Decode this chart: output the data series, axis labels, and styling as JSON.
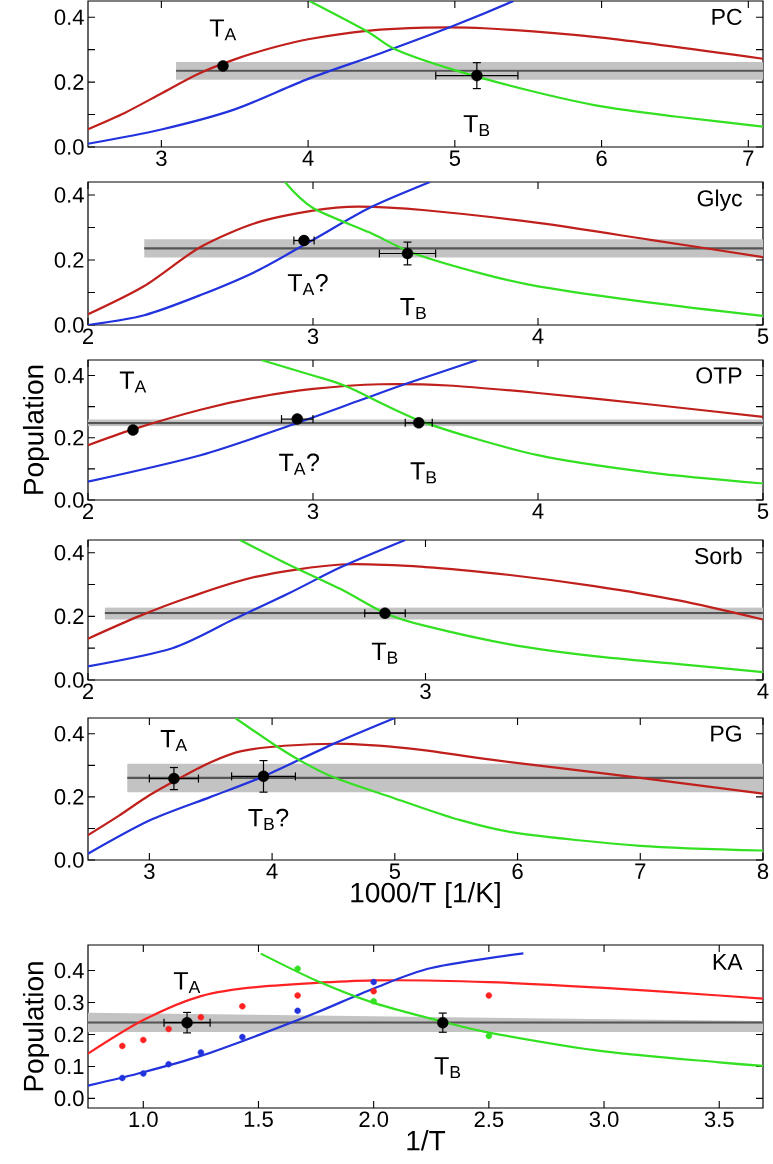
{
  "chart_data": [
    {
      "type": "line",
      "title": "PC",
      "xlim": [
        2.5,
        7.1
      ],
      "ylim": [
        0,
        0.45
      ],
      "xticks": [
        3,
        4,
        5,
        6,
        7
      ],
      "yticks": [
        {
          "value": 0,
          "label": "0.0"
        },
        {
          "value": 0.1,
          "label": null
        },
        0.2,
        {
          "value": 0.3,
          "label": null
        },
        0.4
      ],
      "series": [
        {
          "color": "#555555",
          "x": [
            3.1,
            7.1
          ],
          "values": [
            0.235,
            0.235
          ],
          "lower": [
            0.207,
            0.207
          ],
          "upper": [
            0.262,
            0.262
          ]
        },
        {
          "color": "#c0201c",
          "x": [
            2.5,
            2.75,
            3.0,
            3.25,
            3.5,
            3.75,
            4.0,
            4.4,
            4.8,
            5.2,
            6.0,
            7.1
          ],
          "values": [
            0.055,
            0.105,
            0.165,
            0.225,
            0.27,
            0.305,
            0.332,
            0.358,
            0.368,
            0.366,
            0.337,
            0.272
          ]
        },
        {
          "color": "#2233dd",
          "x": [
            2.5,
            3.0,
            3.5,
            4.0,
            4.5,
            5.0,
            5.4
          ],
          "values": [
            0.01,
            0.054,
            0.116,
            0.21,
            0.29,
            0.375,
            0.45
          ]
        },
        {
          "color": "#33e022",
          "x": [
            4.01,
            4.4,
            4.6,
            5.0,
            5.5,
            6.0,
            6.5,
            7.1
          ],
          "values": [
            0.45,
            0.357,
            0.3,
            0.237,
            0.175,
            0.125,
            0.094,
            0.063
          ]
        },
        {
          "type": "scatter",
          "color": "#000000",
          "marker": "circle",
          "x": [
            3.42,
            5.15
          ],
          "values": [
            0.25,
            0.22
          ],
          "errors": [
            null,
            0.04
          ],
          "xerrors": [
            null,
            0.28
          ]
        }
      ],
      "annotations": [
        "T$_{A}$",
        "T$_{B}$"
      ]
    },
    {
      "type": "line",
      "title": "Glyc",
      "xlim": [
        2,
        5
      ],
      "ylim": [
        0,
        0.44
      ],
      "xticks": [
        2,
        3,
        4,
        5
      ],
      "yticks": [
        {
          "value": 0,
          "label": "0.0"
        },
        {
          "value": 0.1,
          "label": null
        },
        0.2,
        {
          "value": 0.3,
          "label": null
        },
        0.4
      ],
      "series": [
        {
          "color": "#555555",
          "x": [
            2.25,
            5
          ],
          "values": [
            0.236,
            0.236
          ],
          "lower": [
            0.208,
            0.208
          ],
          "upper": [
            0.264,
            0.264
          ]
        },
        {
          "color": "#c0201c",
          "x": [
            2.0,
            2.25,
            2.5,
            2.75,
            3.0,
            3.2,
            3.5,
            4.0,
            4.5,
            5.0
          ],
          "values": [
            0.033,
            0.12,
            0.24,
            0.315,
            0.352,
            0.364,
            0.353,
            0.314,
            0.262,
            0.209
          ]
        },
        {
          "color": "#2233dd",
          "x": [
            2.0,
            2.25,
            2.5,
            2.75,
            3.0,
            3.25,
            3.52
          ],
          "values": [
            0.0,
            0.03,
            0.092,
            0.166,
            0.262,
            0.36,
            0.44
          ]
        },
        {
          "color": "#33e022",
          "x": [
            2.875,
            3.0,
            3.25,
            3.45,
            3.75,
            4.0,
            4.5,
            5.0
          ],
          "values": [
            0.44,
            0.36,
            0.285,
            0.22,
            0.158,
            0.119,
            0.069,
            0.028
          ]
        },
        {
          "type": "scatter",
          "color": "#000000",
          "marker": "circle",
          "x": [
            2.96,
            3.42
          ],
          "values": [
            0.26,
            0.22
          ],
          "errors": [
            null,
            0.035
          ],
          "xerrors": [
            0.045,
            0.125
          ]
        }
      ],
      "annotations": [
        "T$_{A}$?",
        "T$_{B}$"
      ]
    },
    {
      "type": "line",
      "title": "OTP",
      "ylabel": "Population",
      "xlim": [
        2,
        5
      ],
      "ylim": [
        0,
        0.45
      ],
      "xticks": [
        2,
        3,
        4,
        5
      ],
      "yticks": [
        {
          "value": 0,
          "label": "0.0"
        },
        {
          "value": 0.1,
          "label": null
        },
        0.2,
        {
          "value": 0.3,
          "label": null
        },
        0.4
      ],
      "series": [
        {
          "color": "#555555",
          "x": [
            2,
            5
          ],
          "values": [
            0.247,
            0.247
          ],
          "lower": [
            0.237,
            0.237
          ],
          "upper": [
            0.259,
            0.259
          ]
        },
        {
          "color": "#c0201c",
          "x": [
            2.0,
            2.2,
            2.5,
            2.75,
            3.0,
            3.3,
            3.6,
            4.0,
            4.5,
            5.0
          ],
          "values": [
            0.176,
            0.227,
            0.29,
            0.33,
            0.357,
            0.372,
            0.368,
            0.344,
            0.307,
            0.267
          ]
        },
        {
          "color": "#2233dd",
          "x": [
            2.0,
            2.5,
            2.9,
            3.2,
            3.42,
            3.73
          ],
          "values": [
            0.059,
            0.144,
            0.24,
            0.318,
            0.375,
            0.45
          ]
        },
        {
          "color": "#33e022",
          "x": [
            2.77,
            3.0,
            3.15,
            3.5,
            4.0,
            4.5,
            5.0
          ],
          "values": [
            0.45,
            0.4,
            0.365,
            0.248,
            0.144,
            0.088,
            0.053
          ]
        },
        {
          "type": "scatter",
          "color": "#000000",
          "marker": "circle",
          "x": [
            2.2,
            2.93,
            3.47
          ],
          "values": [
            0.225,
            0.26,
            0.248
          ],
          "errors": [
            null,
            null,
            null
          ],
          "xerrors": [
            null,
            0.07,
            0.06
          ]
        }
      ],
      "annotations": [
        "T$_{A}$",
        "T$_{A}$?",
        "T$_{B}$"
      ]
    },
    {
      "type": "line",
      "title": "Sorb",
      "xlim": [
        2,
        4
      ],
      "ylim": [
        0,
        0.44
      ],
      "xticks": [
        2,
        3,
        4
      ],
      "yticks": [
        {
          "value": 0,
          "label": "0.0"
        },
        {
          "value": 0.1,
          "label": null
        },
        0.2,
        {
          "value": 0.3,
          "label": null
        },
        0.4
      ],
      "series": [
        {
          "color": "#555555",
          "x": [
            2.05,
            4
          ],
          "values": [
            0.21,
            0.21
          ],
          "lower": [
            0.19,
            0.19
          ],
          "upper": [
            0.228,
            0.228
          ]
        },
        {
          "color": "#c0201c",
          "x": [
            2.0,
            2.15,
            2.3,
            2.5,
            2.75,
            3.0,
            3.25,
            3.5,
            3.75,
            4.0
          ],
          "values": [
            0.13,
            0.2,
            0.26,
            0.325,
            0.363,
            0.355,
            0.33,
            0.295,
            0.25,
            0.19
          ]
        },
        {
          "color": "#2233dd",
          "x": [
            2.0,
            2.25,
            2.43,
            2.6,
            2.75,
            2.94
          ],
          "values": [
            0.043,
            0.1,
            0.19,
            0.275,
            0.355,
            0.44
          ]
        },
        {
          "color": "#33e022",
          "x": [
            2.45,
            2.6,
            2.75,
            2.88,
            3.0,
            3.25,
            3.5,
            3.75,
            4.0
          ],
          "values": [
            0.44,
            0.36,
            0.285,
            0.21,
            0.17,
            0.112,
            0.075,
            0.05,
            0.025
          ]
        },
        {
          "type": "scatter",
          "color": "#000000",
          "marker": "circle",
          "x": [
            2.88
          ],
          "values": [
            0.21
          ],
          "errors": [
            null
          ],
          "xerrors": [
            0.06
          ]
        }
      ],
      "annotations": [
        "T$_{B}$"
      ]
    },
    {
      "type": "line",
      "title": "PG",
      "xlabel": "1000/T [1/K]",
      "xlim": [
        2.5,
        8
      ],
      "ylim": [
        0,
        0.45
      ],
      "xticks": [
        3,
        4,
        5,
        6,
        7,
        8
      ],
      "yticks": [
        {
          "value": 0,
          "label": "0.0"
        },
        {
          "value": 0.1,
          "label": null
        },
        0.2,
        {
          "value": 0.3,
          "label": null
        },
        0.4
      ],
      "series": [
        {
          "color": "#555555",
          "x": [
            2.82,
            8
          ],
          "values": [
            0.26,
            0.26
          ],
          "lower": [
            0.215,
            0.215
          ],
          "upper": [
            0.305,
            0.305
          ]
        },
        {
          "color": "#c0201c",
          "x": [
            2.5,
            2.75,
            3.0,
            3.25,
            3.5,
            3.75,
            4.1,
            4.6,
            5.2,
            5.8,
            7.0,
            8.0
          ],
          "values": [
            0.079,
            0.14,
            0.205,
            0.26,
            0.31,
            0.345,
            0.362,
            0.368,
            0.35,
            0.317,
            0.26,
            0.21
          ]
        },
        {
          "color": "#2233dd",
          "x": [
            2.5,
            3.0,
            3.5,
            3.93,
            4.5,
            5.0
          ],
          "values": [
            0.02,
            0.125,
            0.2,
            0.265,
            0.368,
            0.45
          ]
        },
        {
          "color": "#33e022",
          "x": [
            3.7,
            4.0,
            4.22,
            4.5,
            5.0,
            5.5,
            6.0,
            7.0,
            8.0
          ],
          "values": [
            0.45,
            0.37,
            0.317,
            0.262,
            0.195,
            0.13,
            0.085,
            0.045,
            0.03
          ]
        },
        {
          "type": "scatter",
          "color": "#000000",
          "marker": "circle",
          "x": [
            3.2,
            3.93
          ],
          "values": [
            0.258,
            0.265
          ],
          "errors": [
            0.035,
            0.05
          ],
          "xerrors": [
            0.2,
            0.26
          ]
        }
      ],
      "annotations": [
        "T$_{A}$",
        "T$_{B}$?"
      ]
    },
    {
      "type": "line",
      "title": "KA",
      "xlabel": "1/T",
      "ylabel": "Population",
      "xlim": [
        0.76,
        3.69
      ],
      "ylim": [
        -0.03,
        0.48
      ],
      "xticks": [
        {
          "value": 1,
          "label": "1.0"
        },
        1.5,
        {
          "value": 2,
          "label": "2.0"
        },
        2.5,
        {
          "value": 3,
          "label": "3.0"
        },
        3.5
      ],
      "yticks": [
        {
          "value": 0,
          "label": "0.0"
        },
        0.1,
        0.2,
        0.3,
        0.4
      ],
      "series": [
        {
          "color": "#555555",
          "x": [
            0.76,
            3.69
          ],
          "values": [
            0.237,
            0.237
          ],
          "lower": [
            0.208,
            0.208
          ],
          "upper": [
            0.268,
            0.242
          ]
        },
        {
          "color": "#ff2222",
          "x": [
            0.76,
            1.0,
            1.25,
            1.5,
            2.0,
            2.5,
            3.0,
            3.5,
            3.69
          ],
          "values": [
            0.14,
            0.245,
            0.32,
            0.349,
            0.369,
            0.364,
            0.346,
            0.322,
            0.312
          ]
        },
        {
          "color": "#2233dd",
          "x": [
            0.76,
            1.0,
            1.25,
            1.5,
            1.75,
            2.0,
            2.25,
            2.65
          ],
          "values": [
            0.04,
            0.082,
            0.133,
            0.198,
            0.268,
            0.344,
            0.408,
            0.454
          ]
        },
        {
          "color": "#33e022",
          "x": [
            1.51,
            1.75,
            2.0,
            2.3,
            2.5,
            3.0,
            3.5,
            3.69
          ],
          "values": [
            0.453,
            0.369,
            0.299,
            0.24,
            0.206,
            0.147,
            0.113,
            0.102
          ]
        },
        {
          "type": "scatter",
          "color": "#ff2222",
          "marker": "circle",
          "x": [
            0.909,
            1.0,
            1.11,
            1.25,
            1.43,
            1.67,
            2.0,
            2.5
          ],
          "values": [
            0.164,
            0.183,
            0.217,
            0.254,
            0.288,
            0.322,
            0.335,
            0.322
          ]
        },
        {
          "type": "scatter",
          "color": "#2233dd",
          "marker": "circle",
          "x": [
            0.909,
            1.0,
            1.11,
            1.25,
            1.43,
            1.67,
            2.0
          ],
          "values": [
            0.064,
            0.078,
            0.107,
            0.144,
            0.192,
            0.274,
            0.364
          ]
        },
        {
          "type": "scatter",
          "color": "#33e022",
          "marker": "circle",
          "x": [
            1.67,
            2.0,
            2.5
          ],
          "values": [
            0.406,
            0.304,
            0.195
          ]
        },
        {
          "type": "scatter",
          "color": "#000000",
          "marker": "circle",
          "x": [
            1.19,
            2.3
          ],
          "values": [
            0.237,
            0.237
          ],
          "errors": [
            0.032,
            0.03
          ],
          "xerrors": [
            0.1,
            null
          ]
        }
      ],
      "annotations": [
        "T$_{A}$",
        "T$_{B}$"
      ]
    }
  ]
}
